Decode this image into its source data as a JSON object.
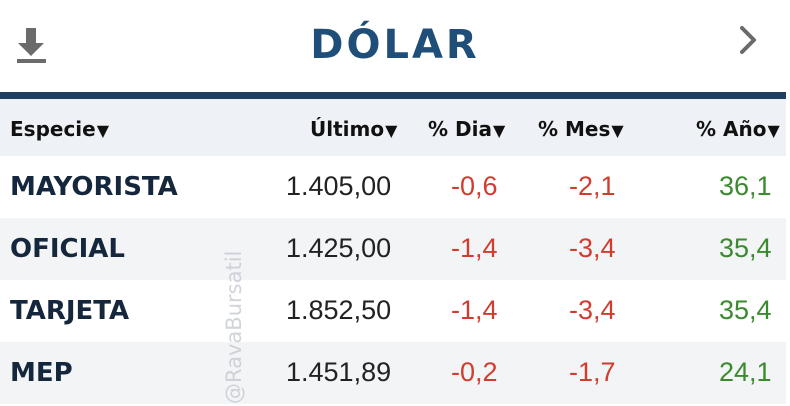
{
  "header": {
    "title": "DÓLAR",
    "download_icon": "download-icon",
    "next_icon": "chevron-right-icon"
  },
  "table": {
    "columns": [
      {
        "label": "Especie",
        "arrow": "▼"
      },
      {
        "label": "Último",
        "arrow": "▼"
      },
      {
        "label": "% Dia",
        "arrow": "▼"
      },
      {
        "label": "% Mes",
        "arrow": "▼"
      },
      {
        "label": "% Año",
        "arrow": "▼"
      }
    ],
    "rows": [
      {
        "name": "MAYORISTA",
        "ultimo": "1.405,00",
        "dia": "-0,6",
        "mes": "-2,1",
        "anio": "36,1"
      },
      {
        "name": "OFICIAL",
        "ultimo": "1.425,00",
        "dia": "-1,4",
        "mes": "-3,4",
        "anio": "35,4"
      },
      {
        "name": "TARJETA",
        "ultimo": "1.852,50",
        "dia": "-1,4",
        "mes": "-3,4",
        "anio": "35,4"
      },
      {
        "name": "MEP",
        "ultimo": "1.451,89",
        "dia": "-0,2",
        "mes": "-1,7",
        "anio": "24,1"
      }
    ]
  },
  "watermark": "@RavaBursatil",
  "colors": {
    "title": "#1f4e79",
    "divider": "#1f3f62",
    "negative": "#d23c2f",
    "positive": "#3a8a2e"
  }
}
